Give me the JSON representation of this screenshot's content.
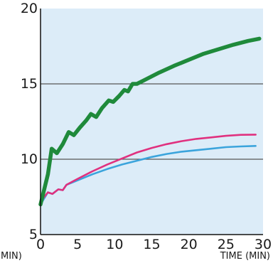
{
  "chart_data": {
    "type": "line",
    "xlabel": "TIME (MIN)",
    "xlabel_left_fragment": "MIN)",
    "ylabel": "",
    "xlim": [
      0,
      30
    ],
    "ylim": [
      5,
      20
    ],
    "x_ticks": [
      "0",
      "5",
      "10",
      "15",
      "20",
      "25",
      "30"
    ],
    "y_ticks": [
      "5",
      "10",
      "15",
      "20"
    ],
    "grid_lines_y": [
      10,
      15
    ],
    "plot_background": "#dcecf8",
    "series": [
      {
        "color": "#1f8a3b",
        "points": [
          [
            0,
            7.0
          ],
          [
            1,
            9.0
          ],
          [
            1.5,
            10.7
          ],
          [
            2.2,
            10.4
          ],
          [
            3,
            11.0
          ],
          [
            3.8,
            11.8
          ],
          [
            4.5,
            11.6
          ],
          [
            5.3,
            12.1
          ],
          [
            6.2,
            12.6
          ],
          [
            6.8,
            13.0
          ],
          [
            7.5,
            12.8
          ],
          [
            8.3,
            13.4
          ],
          [
            9.2,
            13.9
          ],
          [
            9.8,
            13.8
          ],
          [
            10.6,
            14.2
          ],
          [
            11.3,
            14.6
          ],
          [
            11.8,
            14.5
          ],
          [
            12.4,
            15.0
          ],
          [
            13.0,
            15.0
          ],
          [
            14,
            15.25
          ],
          [
            16,
            15.75
          ],
          [
            18,
            16.2
          ],
          [
            20,
            16.6
          ],
          [
            22,
            17.0
          ],
          [
            24,
            17.3
          ],
          [
            26,
            17.6
          ],
          [
            28,
            17.85
          ],
          [
            29.5,
            18.0
          ]
        ]
      },
      {
        "color": "#e0317f",
        "points": [
          [
            0,
            7.2
          ],
          [
            1,
            7.8
          ],
          [
            1.6,
            7.7
          ],
          [
            2.4,
            8.0
          ],
          [
            3,
            7.95
          ],
          [
            3.5,
            8.3
          ],
          [
            5,
            8.7
          ],
          [
            7,
            9.2
          ],
          [
            9,
            9.65
          ],
          [
            11,
            10.05
          ],
          [
            13,
            10.45
          ],
          [
            15,
            10.75
          ],
          [
            17,
            11.0
          ],
          [
            19,
            11.2
          ],
          [
            21,
            11.35
          ],
          [
            23,
            11.45
          ],
          [
            25,
            11.55
          ],
          [
            27,
            11.62
          ],
          [
            29,
            11.63
          ]
        ]
      },
      {
        "color": "#3ba4dc",
        "points": [
          [
            0,
            7.0
          ],
          [
            1,
            7.8
          ],
          [
            1.6,
            7.7
          ],
          [
            2.4,
            8.0
          ],
          [
            3,
            7.95
          ],
          [
            3.5,
            8.3
          ],
          [
            5,
            8.6
          ],
          [
            7,
            9.0
          ],
          [
            9,
            9.35
          ],
          [
            11,
            9.65
          ],
          [
            13,
            9.9
          ],
          [
            15,
            10.15
          ],
          [
            17,
            10.35
          ],
          [
            19,
            10.5
          ],
          [
            21,
            10.6
          ],
          [
            23,
            10.7
          ],
          [
            25,
            10.8
          ],
          [
            27,
            10.85
          ],
          [
            29,
            10.88
          ]
        ]
      }
    ]
  }
}
